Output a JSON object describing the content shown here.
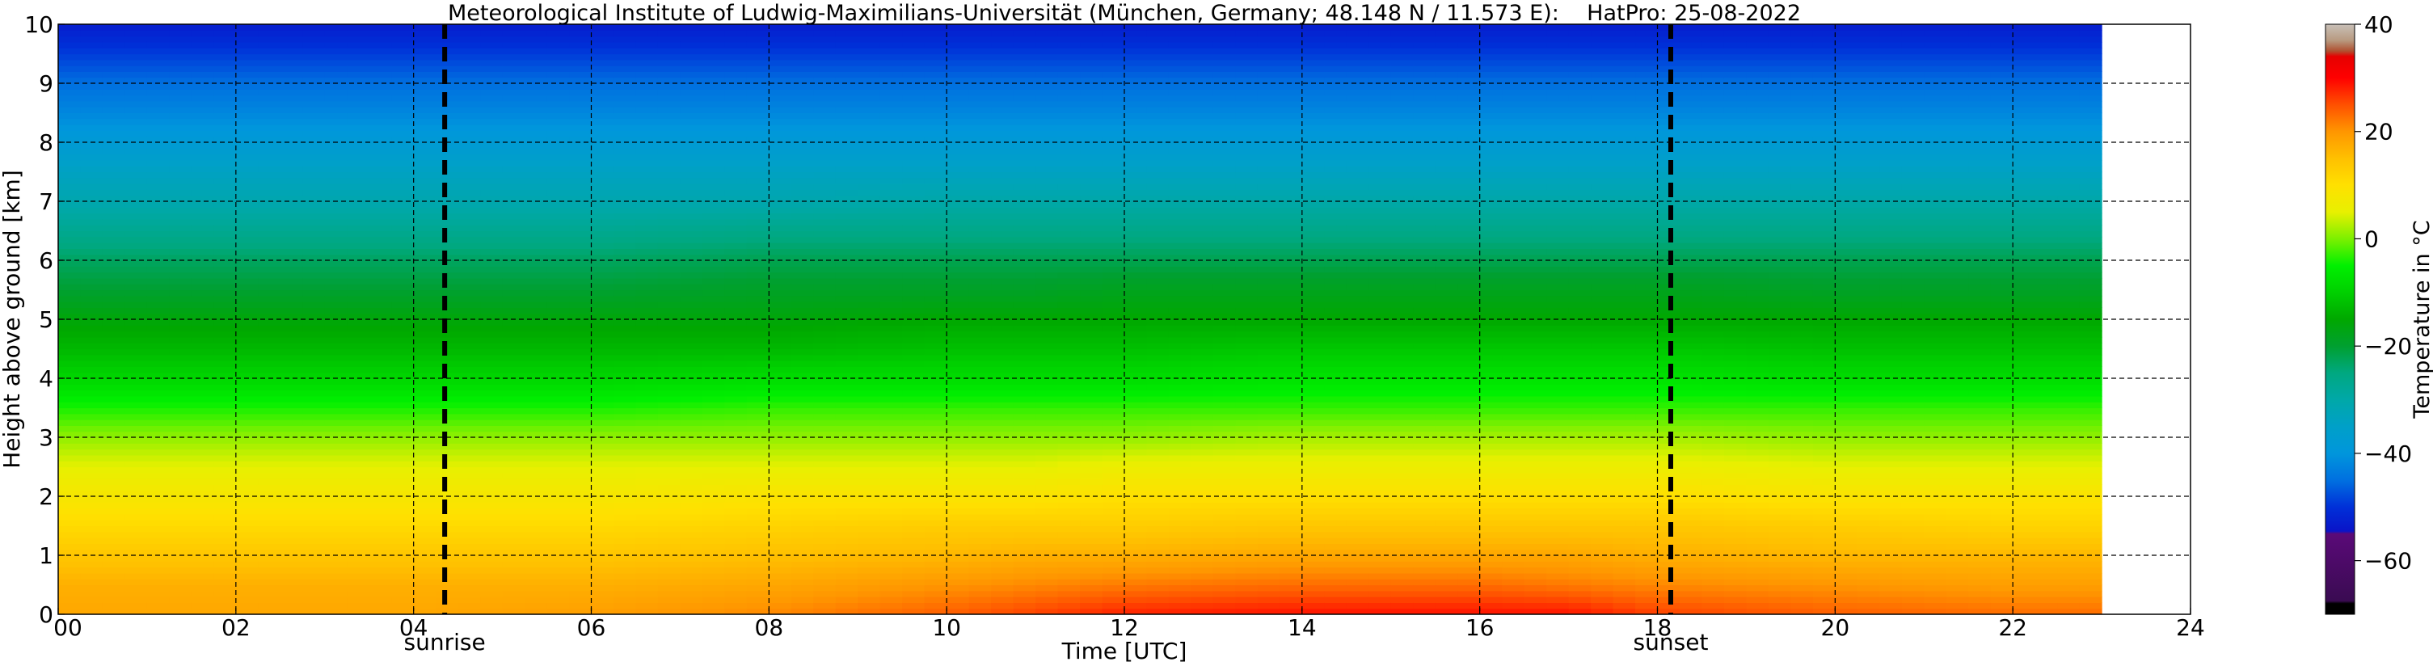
{
  "chart_data": {
    "type": "heatmap",
    "title": "Meteorological Institute of Ludwig-Maximilians-Universität (München, Germany; 48.148 N / 11.573 E):    HatPro: 25-08-2022",
    "xlabel": "Time [UTC]",
    "ylabel": "Height above ground [km]",
    "xlim": [
      0,
      24
    ],
    "ylim": [
      0,
      10
    ],
    "x_ticks": [
      0,
      2,
      4,
      6,
      8,
      10,
      12,
      14,
      16,
      18,
      20,
      22,
      24
    ],
    "x_tick_labels": [
      "00",
      "02",
      "04",
      "06",
      "08",
      "10",
      "12",
      "14",
      "16",
      "18",
      "20",
      "22",
      "24"
    ],
    "y_ticks": [
      0,
      1,
      2,
      3,
      4,
      5,
      6,
      7,
      8,
      9,
      10
    ],
    "y_tick_labels": [
      "0",
      "1",
      "2",
      "3",
      "4",
      "5",
      "6",
      "7",
      "8",
      "9",
      "10"
    ],
    "grid": true,
    "data_end_hour": 23.0,
    "vertical_markers": [
      {
        "label": "sunrise",
        "x": 4.35
      },
      {
        "label": "sunset",
        "x": 18.15
      }
    ],
    "colorbar": {
      "label": "Temperature in °C",
      "range": [
        -70,
        40
      ],
      "ticks": [
        -60,
        -40,
        -20,
        0,
        20,
        40
      ],
      "tick_labels": [
        "−60",
        "−40",
        "−20",
        "0",
        "20",
        "40"
      ],
      "stops": [
        {
          "value": -70,
          "color": "#000000"
        },
        {
          "value": -68,
          "color": "#000000"
        },
        {
          "value": -67.5,
          "color": "#3a0b52"
        },
        {
          "value": -55,
          "color": "#5a0a78"
        },
        {
          "value": -54.5,
          "color": "#0a14c8"
        },
        {
          "value": -50,
          "color": "#0030d8"
        },
        {
          "value": -45,
          "color": "#0070e0"
        },
        {
          "value": -40,
          "color": "#0096dc"
        },
        {
          "value": -35,
          "color": "#00a0c8"
        },
        {
          "value": -30,
          "color": "#00a8a8"
        },
        {
          "value": -25,
          "color": "#00a880"
        },
        {
          "value": -20,
          "color": "#00a030"
        },
        {
          "value": -15,
          "color": "#00a800"
        },
        {
          "value": -10,
          "color": "#00d000"
        },
        {
          "value": -5,
          "color": "#00f000"
        },
        {
          "value": 0,
          "color": "#7cf000"
        },
        {
          "value": 5,
          "color": "#e8f000"
        },
        {
          "value": 10,
          "color": "#ffe000"
        },
        {
          "value": 15,
          "color": "#ffc000"
        },
        {
          "value": 20,
          "color": "#ff9600"
        },
        {
          "value": 25,
          "color": "#ff5000"
        },
        {
          "value": 30,
          "color": "#ff0000"
        },
        {
          "value": 34,
          "color": "#e60000"
        },
        {
          "value": 35,
          "color": "#b05030"
        },
        {
          "value": 37,
          "color": "#b89a80"
        },
        {
          "value": 40,
          "color": "#c8c0b8"
        }
      ]
    },
    "temperature_profile": {
      "heights_km": [
        0,
        0.5,
        1.0,
        1.5,
        2.0,
        2.5,
        3.0,
        3.5,
        4.0,
        4.5,
        5.0,
        5.5,
        6.0,
        6.5,
        7.0,
        7.5,
        8.0,
        8.5,
        9.0,
        9.5,
        10.0
      ],
      "times_utc": [
        0,
        2,
        4,
        6,
        8,
        10,
        11,
        12,
        14,
        16,
        17,
        18,
        20,
        22,
        23
      ],
      "values_c": [
        [
          18,
          17,
          14,
          11,
          8,
          5,
          1,
          -4,
          -9,
          -13,
          -16,
          -20,
          -23,
          -27,
          -31,
          -34,
          -38,
          -42,
          -45,
          -49,
          -53
        ],
        [
          18,
          17,
          14,
          11,
          8,
          5,
          1,
          -4,
          -9,
          -13,
          -16,
          -20,
          -23,
          -27,
          -31,
          -34,
          -38,
          -42,
          -45,
          -49,
          -53
        ],
        [
          18,
          17,
          14,
          11,
          8,
          5,
          1,
          -4,
          -9,
          -13,
          -16,
          -20,
          -23,
          -27,
          -31,
          -34,
          -38,
          -42,
          -45,
          -49,
          -53
        ],
        [
          19,
          17,
          14,
          11,
          8,
          5,
          1,
          -4,
          -9,
          -13,
          -16,
          -20,
          -23,
          -27,
          -31,
          -34,
          -38,
          -42,
          -45,
          -49,
          -53
        ],
        [
          21,
          18,
          15,
          12,
          9,
          5,
          1,
          -3,
          -8,
          -13,
          -16,
          -19,
          -22,
          -26,
          -31,
          -34,
          -38,
          -42,
          -45,
          -49,
          -53
        ],
        [
          24,
          20,
          16,
          13,
          9,
          5,
          1,
          -3,
          -8,
          -12,
          -15,
          -19,
          -22,
          -26,
          -30,
          -34,
          -38,
          -42,
          -45,
          -49,
          -53
        ],
        [
          26,
          21,
          17,
          13,
          9,
          5,
          1,
          -3,
          -8,
          -12,
          -15,
          -19,
          -22,
          -26,
          -30,
          -34,
          -38,
          -42,
          -45,
          -49,
          -53
        ],
        [
          28,
          22,
          17,
          13,
          10,
          6,
          1,
          -3,
          -8,
          -12,
          -15,
          -18,
          -22,
          -26,
          -30,
          -34,
          -38,
          -42,
          -45,
          -49,
          -53
        ],
        [
          29,
          23,
          18,
          14,
          10,
          6,
          2,
          -3,
          -7,
          -11,
          -15,
          -18,
          -22,
          -26,
          -30,
          -34,
          -38,
          -42,
          -45,
          -49,
          -53
        ],
        [
          29,
          23,
          18,
          14,
          10,
          6,
          2,
          -3,
          -7,
          -11,
          -15,
          -18,
          -22,
          -26,
          -30,
          -34,
          -38,
          -42,
          -45,
          -49,
          -53
        ],
        [
          29,
          22,
          18,
          14,
          10,
          6,
          2,
          -3,
          -7,
          -11,
          -15,
          -18,
          -22,
          -26,
          -30,
          -34,
          -38,
          -42,
          -45,
          -49,
          -53
        ],
        [
          26,
          21,
          17,
          14,
          10,
          6,
          2,
          -3,
          -7,
          -11,
          -15,
          -18,
          -22,
          -26,
          -30,
          -34,
          -38,
          -42,
          -45,
          -49,
          -53
        ],
        [
          24,
          20,
          16,
          13,
          9,
          5,
          1,
          -3,
          -8,
          -12,
          -15,
          -19,
          -22,
          -26,
          -30,
          -34,
          -38,
          -42,
          -45,
          -49,
          -53
        ],
        [
          23,
          19,
          16,
          12,
          9,
          5,
          1,
          -3,
          -8,
          -12,
          -15,
          -19,
          -22,
          -26,
          -30,
          -34,
          -38,
          -42,
          -45,
          -49,
          -53
        ],
        [
          23,
          19,
          16,
          12,
          9,
          5,
          1,
          -3,
          -8,
          -12,
          -15,
          -19,
          -22,
          -26,
          -30,
          -34,
          -38,
          -42,
          -45,
          -49,
          -53
        ]
      ]
    }
  }
}
